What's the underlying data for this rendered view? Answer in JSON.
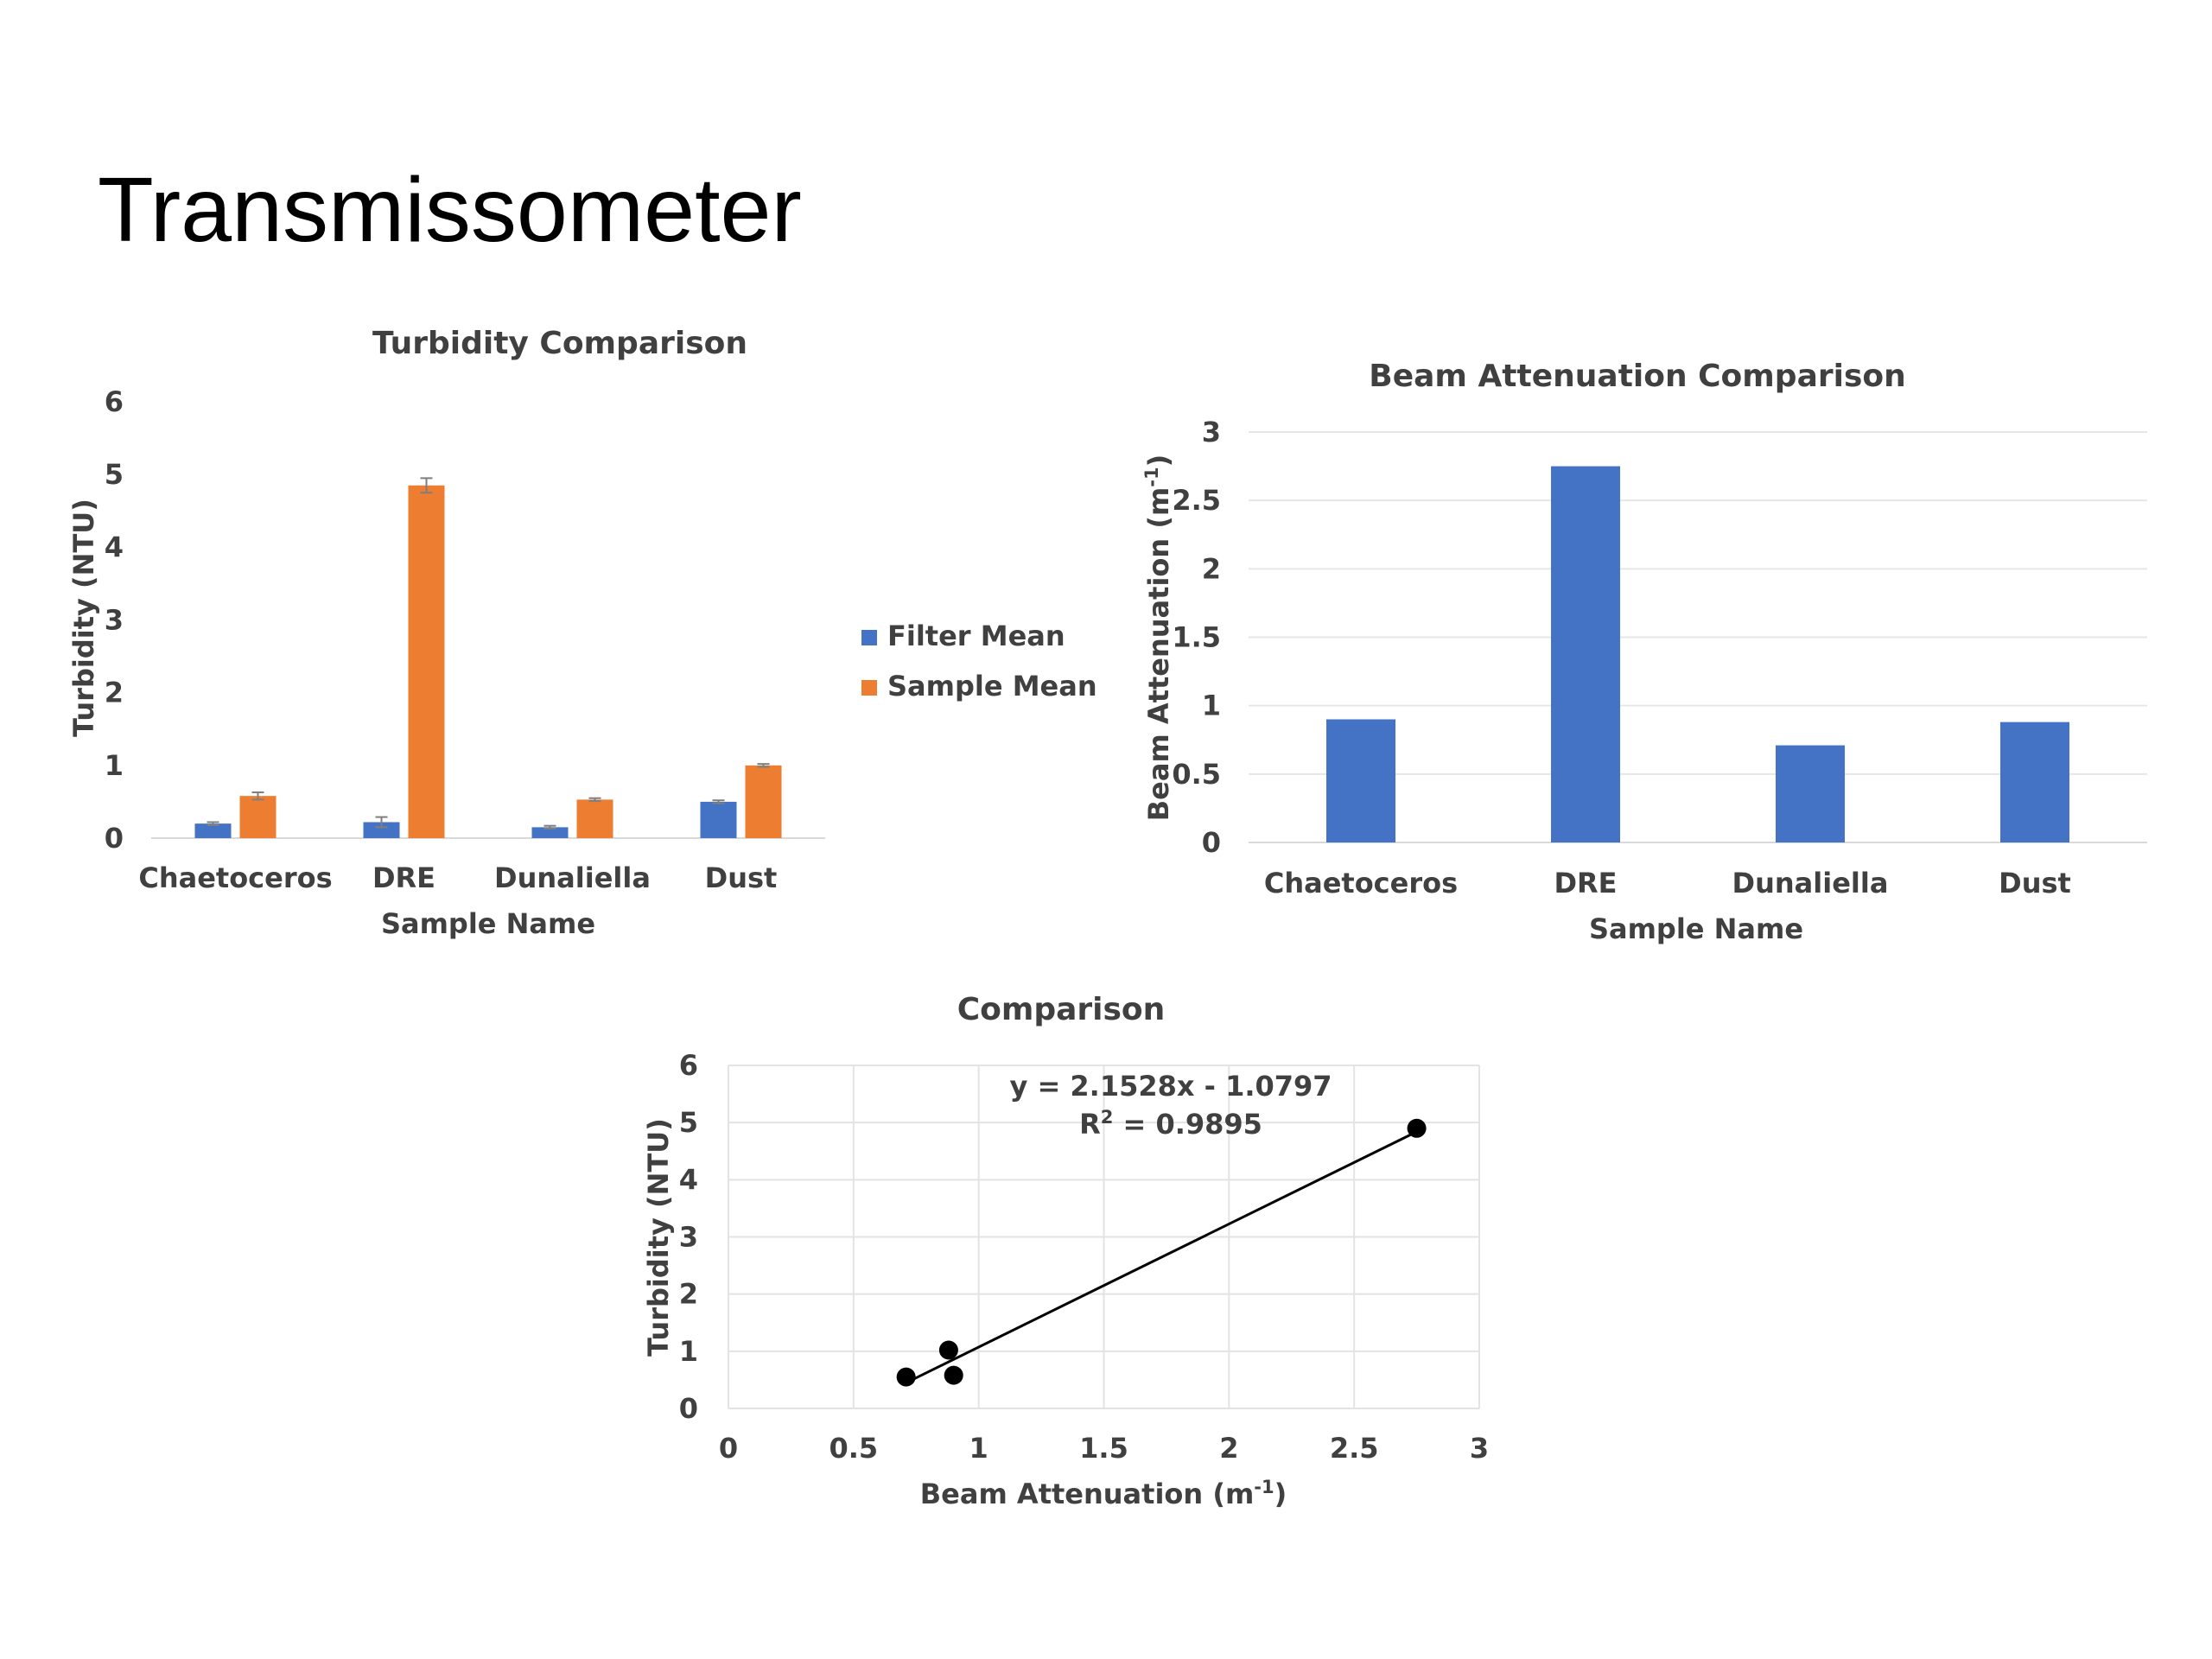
{
  "slide": {
    "title": "Transmissometer"
  },
  "chart_data": [
    {
      "type": "bar",
      "title": "Turbidity Comparison",
      "xlabel": "Sample Name",
      "ylabel": "Turbidity (NTU)",
      "categories": [
        "Chaetoceros",
        "DRE",
        "Dunaliella",
        "Dust"
      ],
      "series": [
        {
          "name": "Filter Mean",
          "color": "#4472c4",
          "values": [
            0.2,
            0.22,
            0.15,
            0.5
          ],
          "errors": [
            0.02,
            0.07,
            0.02,
            0.02
          ]
        },
        {
          "name": "Sample Mean",
          "color": "#ed7d31",
          "values": [
            0.58,
            4.85,
            0.53,
            1.0
          ],
          "errors": [
            0.05,
            0.1,
            0.02,
            0.02
          ]
        }
      ],
      "ylim": [
        0,
        6
      ],
      "yticks": [
        "0",
        "1",
        "2",
        "3",
        "4",
        "5",
        "6"
      ],
      "grid": false,
      "legend": "right"
    },
    {
      "type": "bar",
      "title": "Beam Attenuation Comparison",
      "xlabel": "Sample Name",
      "ylabel": "Beam Attenuation (m",
      "ylabel_sup": "-1",
      "ylabel_end": ")",
      "categories": [
        "Chaetoceros",
        "DRE",
        "Dunaliella",
        "Dust"
      ],
      "series": [
        {
          "color": "#4472c4",
          "values": [
            0.9,
            2.75,
            0.71,
            0.88
          ]
        }
      ],
      "ylim": [
        0,
        3
      ],
      "yticks": [
        "0",
        "0.5",
        "1",
        "1.5",
        "2",
        "2.5",
        "3"
      ],
      "grid": true
    },
    {
      "type": "scatter",
      "title": "Comparison",
      "xlabel": "Beam Attenuation (m",
      "xlabel_sup": "-1",
      "xlabel_end": ")",
      "ylabel": "Turbidity (NTU)",
      "points": [
        {
          "x": 0.71,
          "y": 0.55
        },
        {
          "x": 0.88,
          "y": 1.02
        },
        {
          "x": 0.9,
          "y": 0.58
        },
        {
          "x": 2.75,
          "y": 4.9
        }
      ],
      "trendline": {
        "slope": 2.1528,
        "intercept": -1.0797
      },
      "equation": "y = 2.1528x - 1.0797",
      "r2_label": "R",
      "r2_sup": "2",
      "r2_value": " = 0.9895",
      "xlim": [
        0,
        3
      ],
      "ylim": [
        0,
        6
      ],
      "xticks": [
        "0",
        "0.5",
        "1",
        "1.5",
        "2",
        "2.5",
        "3"
      ],
      "yticks": [
        "0",
        "1",
        "2",
        "3",
        "4",
        "5",
        "6"
      ],
      "grid": true
    }
  ]
}
